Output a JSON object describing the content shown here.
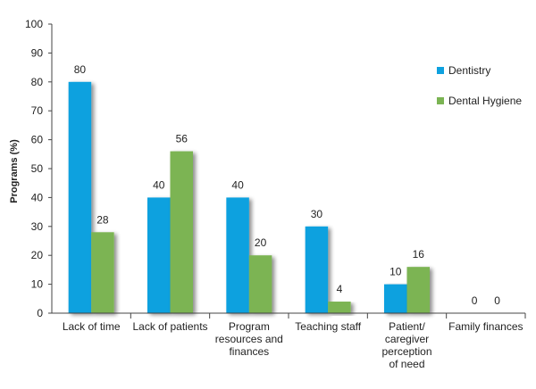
{
  "chart_data": {
    "type": "bar",
    "title": "",
    "xlabel": "",
    "ylabel": "Programs (%)",
    "ylim": [
      0,
      100
    ],
    "yticks": [
      0,
      10,
      20,
      30,
      40,
      50,
      60,
      70,
      80,
      90,
      100
    ],
    "grid": false,
    "legend_position": "top-right",
    "categories": [
      [
        "Lack of time"
      ],
      [
        "Lack of patients"
      ],
      [
        "Program",
        "resources and",
        "finances"
      ],
      [
        "Teaching staff"
      ],
      [
        "Patient/",
        "caregiver",
        "perception",
        "of need"
      ],
      [
        "Family finances"
      ]
    ],
    "series": [
      {
        "name": "Dentistry",
        "color": "#0ea1df",
        "values": [
          80,
          40,
          40,
          30,
          10,
          0
        ]
      },
      {
        "name": "Dental Hygiene",
        "color": "#7bb453",
        "values": [
          28,
          56,
          20,
          4,
          16,
          0
        ]
      }
    ]
  }
}
